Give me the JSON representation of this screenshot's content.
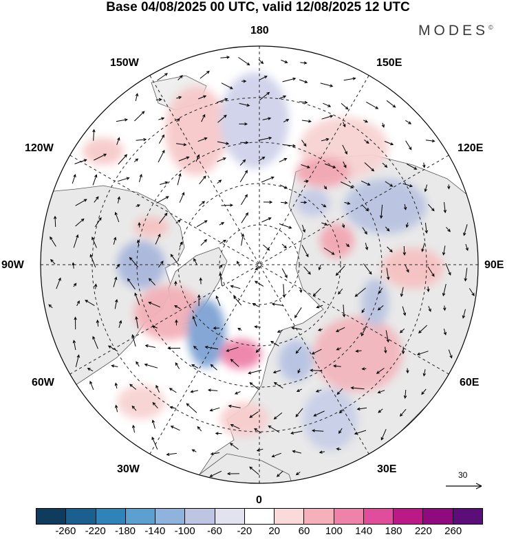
{
  "header": {
    "title": "Base 04/08/2025 00 UTC, valid 12/08/2025 12 UTC",
    "brand": "MODES",
    "brand_mark": "©"
  },
  "map": {
    "projection": "north-polar-stereographic",
    "longitude_labels": {
      "lon_180": "180",
      "lon_150e": "150E",
      "lon_120e": "120E",
      "lon_90e": "90E",
      "lon_60e": "60E",
      "lon_30e": "30E",
      "lon_0": "0",
      "lon_30w": "30W",
      "lon_60w": "60W",
      "lon_90w": "90W",
      "lon_120w": "120W",
      "lon_150w": "150W"
    },
    "reference_vector": "30",
    "anomaly_regions": [
      {
        "name": "gulf-of-alaska-positive",
        "value": 40
      },
      {
        "name": "bering-negative",
        "value": -60
      },
      {
        "name": "east-siberia-positive",
        "value": 40
      },
      {
        "name": "hudson-bay-negative",
        "value": -100
      },
      {
        "name": "labrador-positive",
        "value": 60
      },
      {
        "name": "central-asia-negative",
        "value": -100
      },
      {
        "name": "kazakhstan-positive",
        "value": 40
      },
      {
        "name": "north-atlantic-negative",
        "value": -140
      },
      {
        "name": "north-sea-positive",
        "value": 120
      },
      {
        "name": "west-siberia-positive",
        "value": 60
      },
      {
        "name": "eastern-europe-negative",
        "value": -80
      },
      {
        "name": "mediterranean-positive",
        "value": 40
      }
    ]
  },
  "colorbar": {
    "colors": [
      "#0f3b5c",
      "#1a5f8d",
      "#2f83b8",
      "#5ba0cf",
      "#8fb3dc",
      "#bcc6e2",
      "#e3e3f0",
      "#ffffff",
      "#fbdada",
      "#f5b0ba",
      "#ee82a9",
      "#e04d9c",
      "#bb1a86",
      "#8e0a7e",
      "#5b0e78"
    ],
    "tick_labels": [
      "-260",
      "-220",
      "-180",
      "-140",
      "-100",
      "-60",
      "-20",
      "20",
      "60",
      "100",
      "140",
      "180",
      "220",
      "260"
    ]
  }
}
